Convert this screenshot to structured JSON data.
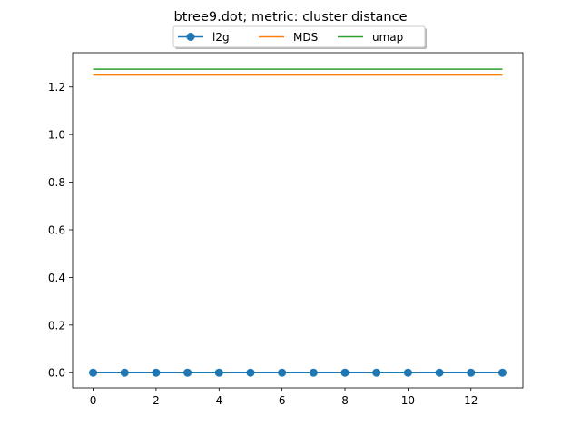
{
  "chart_data": {
    "type": "line",
    "title": "btree9.dot; metric: cluster distance",
    "xlabel": "",
    "ylabel": "",
    "xlim": [
      -0.65,
      13.65
    ],
    "ylim": [
      -0.064,
      1.344
    ],
    "xticks": [
      0,
      2,
      4,
      6,
      8,
      10,
      12
    ],
    "yticks": [
      0.0,
      0.2,
      0.4,
      0.6,
      0.8,
      1.0,
      1.2
    ],
    "grid": false,
    "legend_position": "top-center",
    "x": [
      0,
      1,
      2,
      3,
      4,
      5,
      6,
      7,
      8,
      9,
      10,
      11,
      12,
      13
    ],
    "series": [
      {
        "name": "l2g",
        "color": "#1f77b4",
        "marker": "circle",
        "values": [
          0,
          0,
          0,
          0,
          0,
          0,
          0,
          0,
          0,
          0,
          0,
          0,
          0,
          0
        ]
      },
      {
        "name": "MDS",
        "color": "#ff7f0e",
        "marker": "none",
        "values": [
          1.25,
          1.25,
          1.25,
          1.25,
          1.25,
          1.25,
          1.25,
          1.25,
          1.25,
          1.25,
          1.25,
          1.25,
          1.25,
          1.25
        ]
      },
      {
        "name": "umap",
        "color": "#2ca02c",
        "marker": "none",
        "values": [
          1.275,
          1.275,
          1.275,
          1.275,
          1.275,
          1.275,
          1.275,
          1.275,
          1.275,
          1.275,
          1.275,
          1.275,
          1.275,
          1.275
        ]
      }
    ]
  }
}
